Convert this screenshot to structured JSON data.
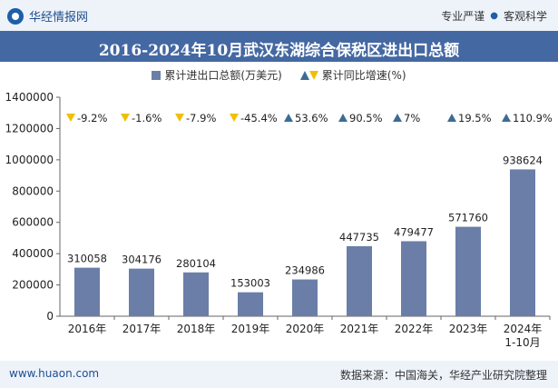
{
  "header": {
    "site_name": "华经情报网",
    "tagline_left": "专业严谨",
    "tagline_right": "客观科学"
  },
  "legend": {
    "bar_label": "累计进出口总额(万美元)",
    "growth_label": "累计同比增速(%)"
  },
  "footer": {
    "url": "www.huaon.com",
    "source": "数据来源：中国海关，华经产业研究院整理"
  },
  "colors": {
    "bar": "#6a7ea8",
    "up": "#3c6c94",
    "down": "#f0c000",
    "title_band": "#4468a2"
  },
  "chart_data": {
    "type": "bar",
    "title": "2016-2024年10月武汉东湖综合保税区进出口总额",
    "categories": [
      "2016年",
      "2017年",
      "2018年",
      "2019年",
      "2020年",
      "2021年",
      "2022年",
      "2023年",
      "2024年\n1-10月"
    ],
    "series": [
      {
        "name": "累计进出口总额(万美元)",
        "values": [
          310058,
          304176,
          280104,
          153003,
          234986,
          447735,
          479477,
          571760,
          938624
        ]
      },
      {
        "name": "累计同比增速(%)",
        "values": [
          -9.2,
          -1.6,
          -7.9,
          -45.4,
          53.6,
          90.5,
          7,
          19.5,
          110.9
        ]
      }
    ],
    "growth_labels": [
      "-9.2%",
      "-1.6%",
      "-7.9%",
      "-45.4%",
      "53.6%",
      "90.5%",
      "7%",
      "19.5%",
      "110.9%"
    ],
    "yticks": [
      "0",
      "200000",
      "400000",
      "600000",
      "800000",
      "1000000",
      "1200000",
      "1400000"
    ],
    "ylim": [
      0,
      1400000
    ],
    "legend": "top-center",
    "grid": false
  }
}
